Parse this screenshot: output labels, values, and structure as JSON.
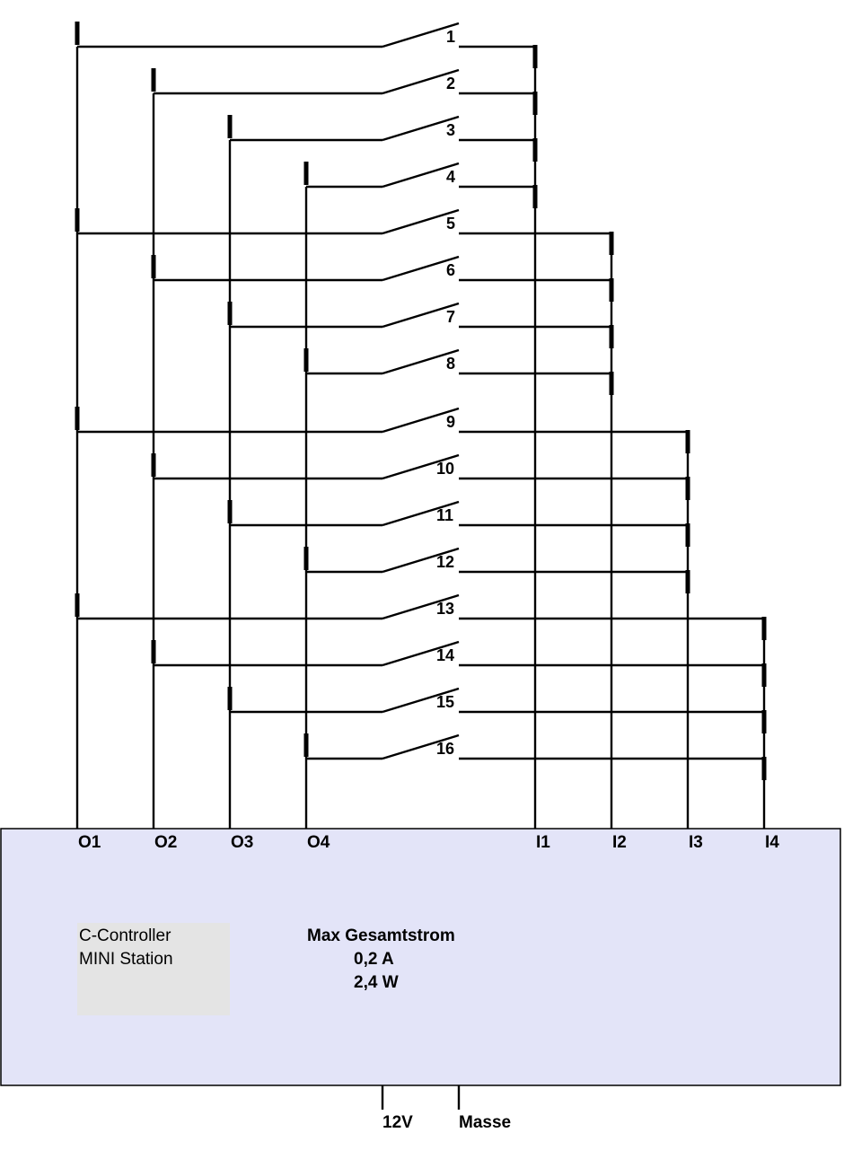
{
  "switches": [
    {
      "label": "1",
      "output": "O1",
      "input": "I1"
    },
    {
      "label": "2",
      "output": "O2",
      "input": "I1"
    },
    {
      "label": "3",
      "output": "O3",
      "input": "I1"
    },
    {
      "label": "4",
      "output": "O4",
      "input": "I1"
    },
    {
      "label": "5",
      "output": "O1",
      "input": "I2"
    },
    {
      "label": "6",
      "output": "O2",
      "input": "I2"
    },
    {
      "label": "7",
      "output": "O3",
      "input": "I2"
    },
    {
      "label": "8",
      "output": "O4",
      "input": "I2"
    },
    {
      "label": "9",
      "output": "O1",
      "input": "I3"
    },
    {
      "label": "10",
      "output": "O2",
      "input": "I3"
    },
    {
      "label": "11",
      "output": "O3",
      "input": "I3"
    },
    {
      "label": "12",
      "output": "O4",
      "input": "I3"
    },
    {
      "label": "13",
      "output": "O1",
      "input": "I4"
    },
    {
      "label": "14",
      "output": "O2",
      "input": "I4"
    },
    {
      "label": "15",
      "output": "O3",
      "input": "I4"
    },
    {
      "label": "16",
      "output": "O4",
      "input": "I4"
    }
  ],
  "outputs": [
    "O1",
    "O2",
    "O3",
    "O4"
  ],
  "inputs": [
    "I1",
    "I2",
    "I3",
    "I4"
  ],
  "controller": {
    "name_line1": "C-Controller",
    "name_line2": "MINI Station",
    "spec_title": "Max Gesamtstrom",
    "current": "0,2 A",
    "power": "2,4 W"
  },
  "power_pins": {
    "plus": "12V",
    "ground": "Masse"
  },
  "colors": {
    "box_fill": "#e3e4f8",
    "name_panel": "#e4e4e4",
    "wire": "#000000"
  }
}
